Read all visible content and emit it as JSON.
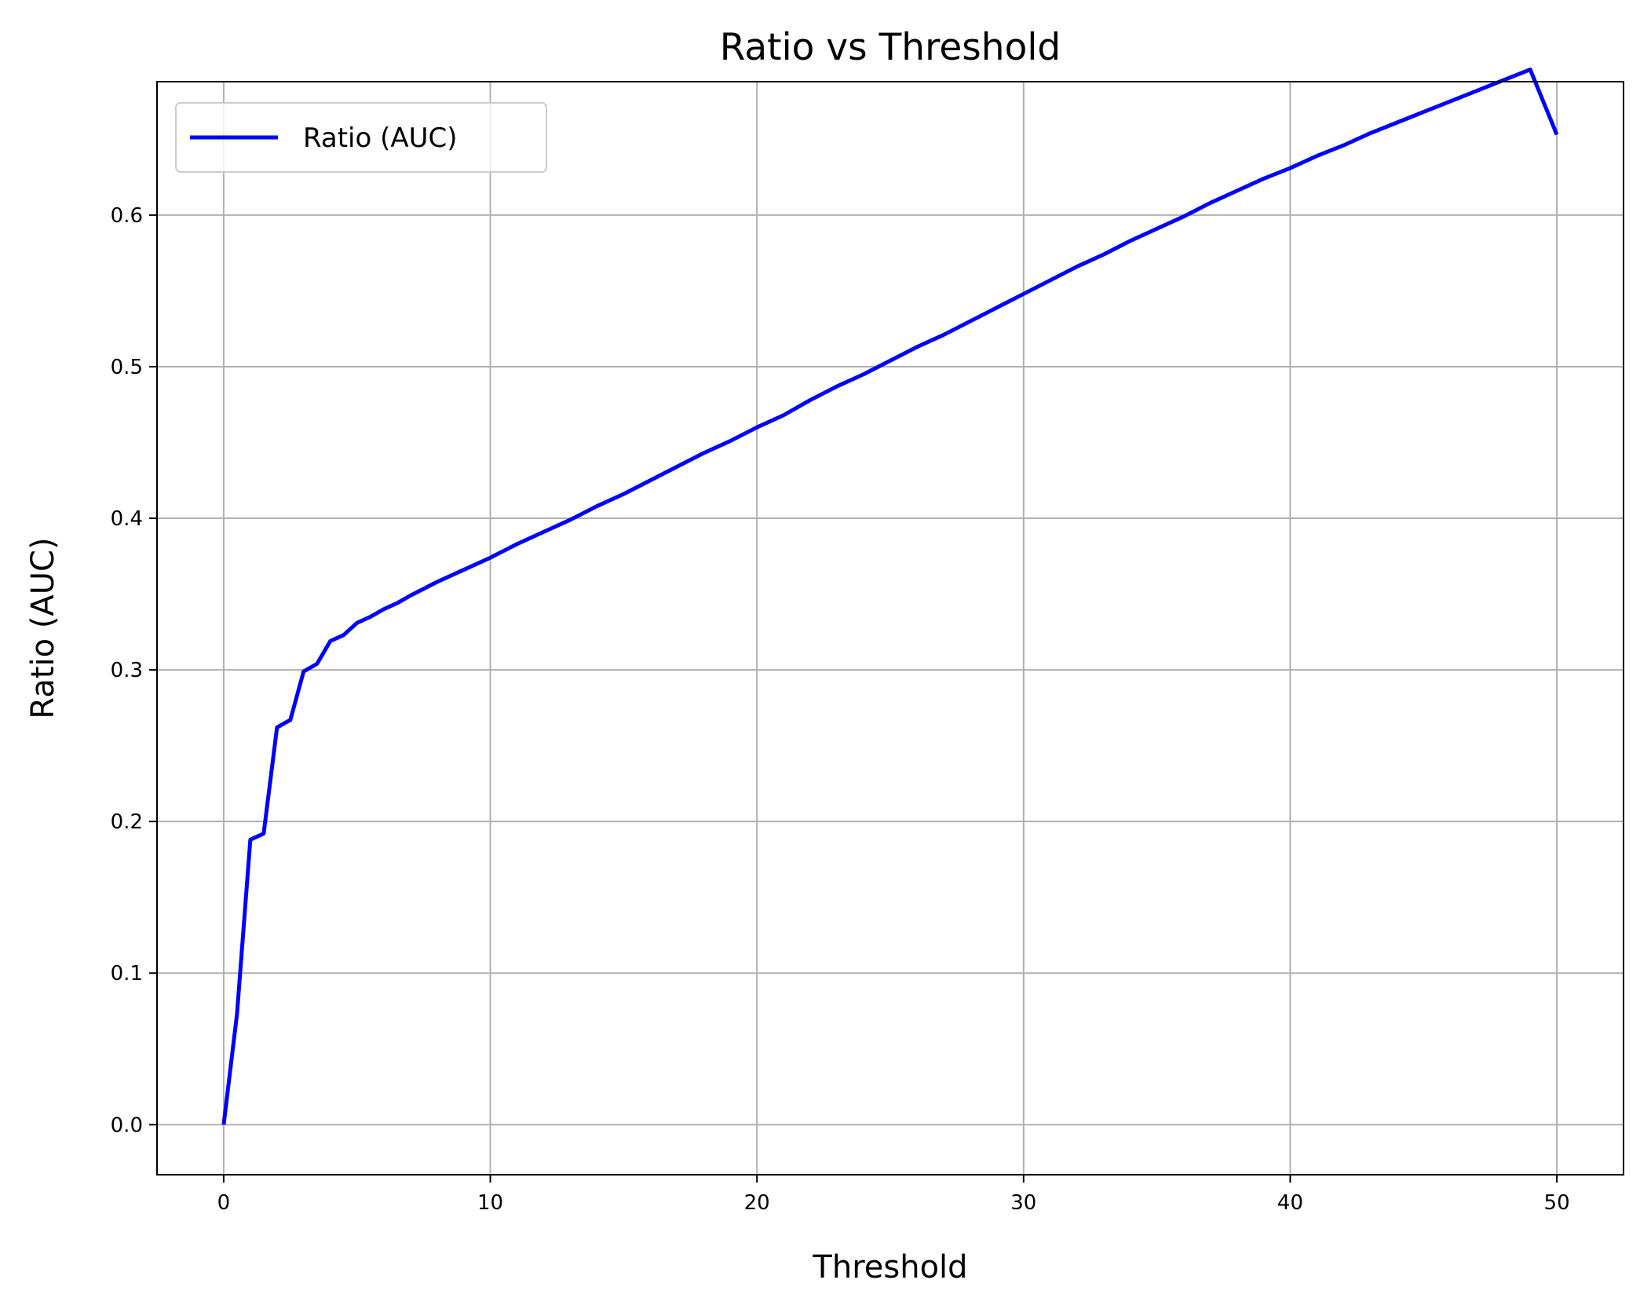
{
  "chart_data": {
    "type": "line",
    "title": "Ratio vs Threshold",
    "xlabel": "Threshold",
    "ylabel": "Ratio (AUC)",
    "xlim": [
      -2.5,
      52.5
    ],
    "ylim": [
      -0.033,
      0.688
    ],
    "xticks": [
      0,
      10,
      20,
      30,
      40,
      50
    ],
    "yticks": [
      0.0,
      0.1,
      0.2,
      0.3,
      0.4,
      0.5,
      0.6
    ],
    "xtick_labels": [
      "0",
      "10",
      "20",
      "30",
      "40",
      "50"
    ],
    "ytick_labels": [
      "0.0",
      "0.1",
      "0.2",
      "0.3",
      "0.4",
      "0.5",
      "0.6"
    ],
    "grid": true,
    "legend_position": "top-left",
    "series": [
      {
        "name": "Ratio (AUC)",
        "color": "#0000ff",
        "x": [
          0,
          0.5,
          1,
          1.5,
          2,
          2.5,
          3,
          3.5,
          4,
          4.5,
          5,
          5.5,
          6,
          6.5,
          7,
          8,
          9,
          10,
          11,
          12,
          13,
          14,
          15,
          16,
          17,
          18,
          19,
          20,
          21,
          22,
          23,
          24,
          25,
          26,
          27,
          28,
          29,
          30,
          31,
          32,
          33,
          34,
          35,
          36,
          37,
          38,
          39,
          40,
          41,
          42,
          43,
          44,
          45,
          46,
          47,
          48,
          49,
          50
        ],
        "y": [
          0.0,
          0.073,
          0.188,
          0.192,
          0.262,
          0.267,
          0.299,
          0.304,
          0.319,
          0.323,
          0.331,
          0.335,
          0.34,
          0.344,
          0.349,
          0.358,
          0.366,
          0.374,
          0.383,
          0.391,
          0.399,
          0.408,
          0.416,
          0.425,
          0.434,
          0.443,
          0.451,
          0.46,
          0.468,
          0.478,
          0.487,
          0.495,
          0.504,
          0.513,
          0.521,
          0.53,
          0.539,
          0.548,
          0.557,
          0.566,
          0.574,
          0.583,
          0.591,
          0.599,
          0.608,
          0.616,
          0.624,
          0.631,
          0.639,
          0.646,
          0.654,
          0.661,
          0.668,
          0.675,
          0.682,
          0.689,
          0.696,
          0.653
        ]
      }
    ]
  }
}
